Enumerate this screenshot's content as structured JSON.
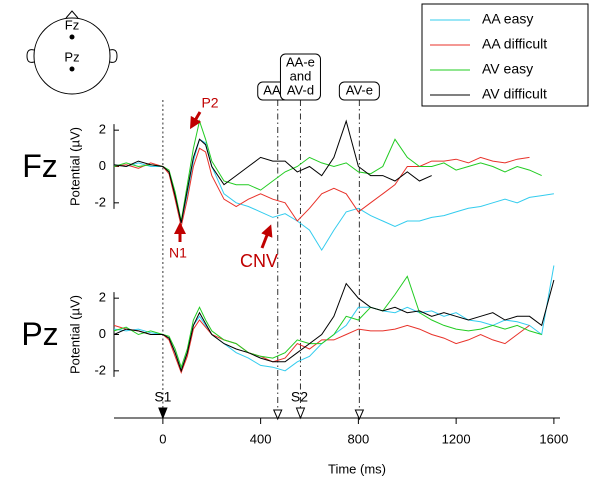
{
  "electrode_map": {
    "labels": [
      "Fz",
      "Pz"
    ]
  },
  "chart_data": [
    {
      "type": "line",
      "title": "Fz",
      "ylabel": "Potential (µV)",
      "legend": "top-right",
      "annotations": [
        "P2",
        "N1",
        "CNV"
      ],
      "xlim": [
        -200,
        1625
      ],
      "ylim": [
        -3,
        3
      ],
      "yticks": [
        -2,
        0,
        2
      ],
      "x": [
        -200,
        -150,
        -100,
        -50,
        0,
        25,
        50,
        75,
        100,
        125,
        150,
        175,
        200,
        250,
        300,
        350,
        400,
        450,
        500,
        550,
        600,
        650,
        700,
        750,
        800,
        850,
        900,
        950,
        1000,
        1050,
        1100,
        1150,
        1200,
        1250,
        1300,
        1350,
        1400,
        1450,
        1500,
        1550,
        1600
      ],
      "series": [
        {
          "name": "AA easy",
          "color": "#33ccee",
          "values": [
            0.1,
            0,
            0.2,
            0,
            0,
            -0.3,
            -1.5,
            -3.2,
            -1.5,
            0.3,
            1.5,
            1.3,
            0,
            -1.5,
            -2,
            -2.2,
            -2.5,
            -2.8,
            -2.6,
            -3,
            -3.5,
            -4.6,
            -3.5,
            -2.5,
            -2.3,
            -2.7,
            -3,
            -3.3,
            -3,
            -3,
            -2.8,
            -2.7,
            -2.5,
            -2.3,
            -2.2,
            -2,
            -1.8,
            -2,
            -1.7,
            -1.6,
            -1.5
          ]
        },
        {
          "name": "AA difficult",
          "color": "#e8322a",
          "values": [
            0,
            0.1,
            -0.1,
            0.2,
            0,
            -0.4,
            -1.8,
            -3.3,
            -1.8,
            0,
            1,
            0.8,
            -0.5,
            -1.8,
            -2.2,
            -1.8,
            -1.5,
            -1.8,
            -2,
            -3,
            -2.3,
            -1.5,
            -1.2,
            -1.5,
            -2.5,
            -2,
            -1.5,
            -1,
            0,
            0,
            0.3,
            0.3,
            0.4,
            0.2,
            0.5,
            0.3,
            0.2,
            0.4,
            0.5,
            null,
            null
          ]
        },
        {
          "name": "AV easy",
          "color": "#22cc22",
          "values": [
            0,
            0.2,
            0,
            0.1,
            0,
            -0.2,
            -1.4,
            -3,
            -1,
            1,
            2.5,
            1.5,
            0.3,
            -0.8,
            -1,
            -1,
            -1.3,
            -0.8,
            -0.3,
            0,
            0.5,
            0.2,
            0,
            0.2,
            -0.3,
            -0.4,
            0,
            1.5,
            0.5,
            0,
            0,
            0.2,
            -0.2,
            0,
            0.2,
            0,
            -0.3,
            0,
            -0.2,
            -0.5,
            null
          ]
        },
        {
          "name": "AV difficult",
          "color": "#000000",
          "values": [
            0.1,
            0,
            0.3,
            0.1,
            0,
            -0.3,
            -1.6,
            -3.1,
            -1.3,
            0.5,
            1.5,
            1.2,
            0,
            -1,
            -0.5,
            0,
            0.5,
            0.3,
            0.3,
            -0.3,
            0,
            -0.5,
            0.5,
            2.5,
            0,
            -0.5,
            -0.5,
            -0.8,
            -0.3,
            -0.8,
            -0.5,
            null,
            null,
            null,
            null,
            null,
            null,
            null,
            null,
            null,
            null
          ]
        }
      ]
    },
    {
      "type": "line",
      "title": "Pz",
      "ylabel": "Potential (µV)",
      "xlabel": "Time (ms)",
      "xlim": [
        -200,
        1625
      ],
      "ylim": [
        -3,
        3
      ],
      "yticks": [
        -2,
        0,
        2
      ],
      "xticks": [
        0,
        400,
        800,
        1200,
        1600
      ],
      "events": [
        {
          "value": 0,
          "marker": "S1"
        },
        {
          "value": 470,
          "bracket": [
            "AA-d"
          ]
        },
        {
          "value": 563,
          "bracket": [
            "AA-e",
            "and",
            "AV-d"
          ],
          "marker": "S2"
        },
        {
          "value": 804,
          "bracket": [
            "AV-e"
          ]
        }
      ],
      "x": [
        -200,
        -150,
        -100,
        -50,
        0,
        25,
        50,
        75,
        100,
        125,
        150,
        175,
        200,
        250,
        300,
        350,
        400,
        450,
        500,
        550,
        600,
        650,
        700,
        750,
        800,
        850,
        900,
        950,
        1000,
        1050,
        1100,
        1150,
        1200,
        1250,
        1300,
        1350,
        1400,
        1450,
        1500,
        1550,
        1600
      ],
      "series": [
        {
          "name": "AA easy",
          "color": "#33ccee",
          "values": [
            0.3,
            0.2,
            0.3,
            0.1,
            0,
            -0.2,
            -1,
            -2,
            -1,
            0.5,
            1,
            0.5,
            0,
            -0.5,
            -1,
            -1.3,
            -1.7,
            -1.8,
            -2,
            -1.5,
            -1.2,
            -0.5,
            0,
            0.5,
            1.5,
            1.5,
            1.3,
            1.2,
            1.5,
            1.2,
            1.3,
            1,
            1.2,
            0.8,
            0.7,
            0.5,
            0.8,
            0.7,
            0.5,
            0,
            3.8
          ]
        },
        {
          "name": "AA difficult",
          "color": "#e8322a",
          "values": [
            0.5,
            0.3,
            0.2,
            0,
            0,
            -0.3,
            -1.2,
            -2.1,
            -1.2,
            0.3,
            0.8,
            0.4,
            0,
            -0.3,
            -0.5,
            -1,
            -1.2,
            -1.5,
            -1.3,
            -0.5,
            -0.8,
            -0.3,
            -0.3,
            0,
            0.3,
            0.2,
            0.2,
            0.3,
            0.5,
            0.3,
            0,
            -0.2,
            -0.5,
            -0.3,
            0,
            -0.3,
            -0.5,
            0,
            0.5,
            null,
            null
          ]
        },
        {
          "name": "AV easy",
          "color": "#22cc22",
          "values": [
            0.2,
            0.4,
            0,
            0.2,
            0,
            -0.1,
            -0.8,
            -1.8,
            -0.8,
            0.8,
            1.5,
            0.8,
            0.2,
            -0.3,
            -0.5,
            -1,
            -1.2,
            -1.3,
            -1,
            -0.3,
            -0.5,
            -0.5,
            0,
            1,
            0.8,
            1.5,
            1.3,
            2.2,
            3.2,
            1.2,
            0.8,
            0.5,
            0.3,
            0.2,
            0.3,
            0.5,
            0.3,
            0.5,
            0.2,
            0,
            null
          ]
        },
        {
          "name": "AV difficult",
          "color": "#000000",
          "values": [
            0,
            0.3,
            0.2,
            0,
            0,
            -0.2,
            -1,
            -2,
            -1,
            0.5,
            1.2,
            0.6,
            0,
            -0.5,
            -0.8,
            -1,
            -1.3,
            -1.5,
            -1.5,
            -1,
            -0.5,
            0,
            1,
            2.8,
            2,
            1.5,
            1.3,
            1.5,
            1.2,
            1.3,
            1,
            1.2,
            1,
            0.8,
            1,
            1.2,
            0.8,
            1,
            1,
            0.5,
            3
          ]
        }
      ]
    }
  ]
}
